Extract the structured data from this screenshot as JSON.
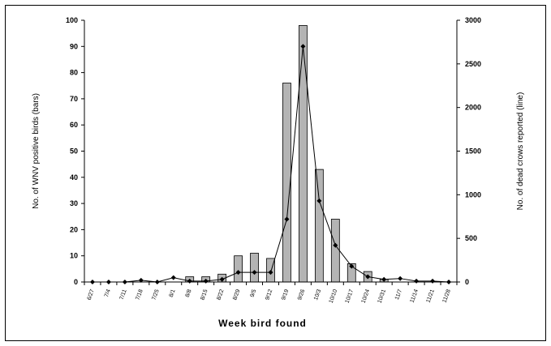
{
  "chart_data": {
    "type": "bar",
    "xlabel": "Week bird found",
    "ylabel": "No. of WNV positive birds (bars)",
    "y2label": "No. of dead crows reported (line)",
    "ylim": [
      0,
      100
    ],
    "y2lim": [
      0,
      3000
    ],
    "yticks": [
      0,
      10,
      20,
      30,
      40,
      50,
      60,
      70,
      80,
      90,
      100
    ],
    "y2ticks": [
      0,
      500,
      1000,
      1500,
      2000,
      2500,
      3000
    ],
    "categories": [
      "6/27",
      "7/4",
      "7/11",
      "7/18",
      "7/25",
      "8/1",
      "8/8",
      "8/15",
      "8/22",
      "8/29",
      "9/5",
      "9/12",
      "9/19",
      "9/26",
      "10/3",
      "10/10",
      "10/17",
      "10/24",
      "10/31",
      "11/7",
      "11/14",
      "11/21",
      "11/28"
    ],
    "series": [
      {
        "name": "No. of WNV positive birds (bars)",
        "kind": "bar",
        "axis": "left",
        "values": [
          0,
          0,
          0,
          0,
          0,
          0,
          2,
          2,
          3,
          10,
          11,
          9,
          76,
          98,
          43,
          24,
          7,
          4,
          1,
          0,
          0,
          0,
          0
        ]
      },
      {
        "name": "No. of dead crows reported (line)",
        "kind": "line",
        "axis": "right",
        "values": [
          0,
          0,
          0,
          20,
          0,
          50,
          10,
          10,
          30,
          110,
          110,
          110,
          720,
          2700,
          930,
          420,
          180,
          60,
          30,
          40,
          10,
          10,
          0
        ]
      }
    ],
    "colors": {
      "bar_fill": "#b4b4b4",
      "bar_stroke": "#000000",
      "line": "#000000"
    },
    "grid": false,
    "legend": "none"
  }
}
